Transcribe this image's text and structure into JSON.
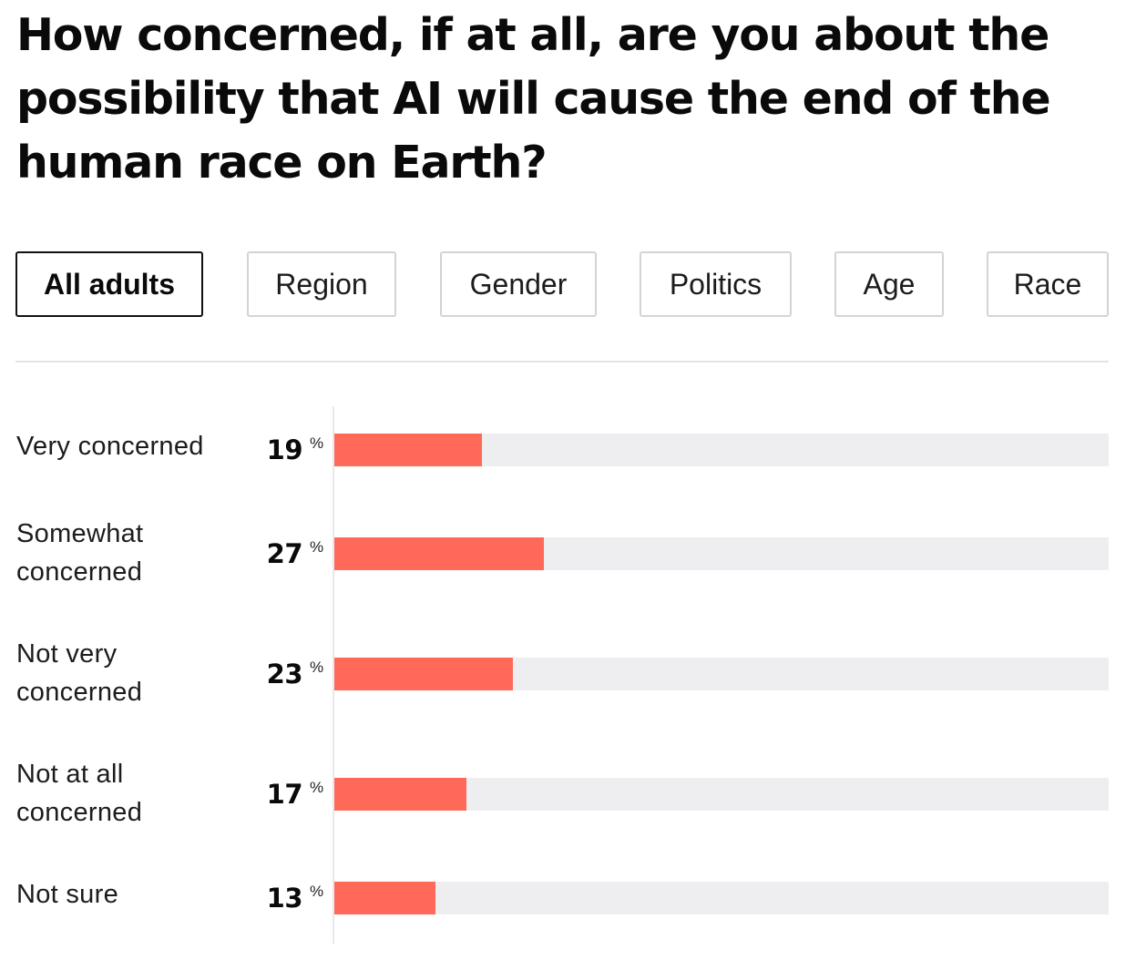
{
  "title": "How concerned, if at all, are you about the possibility that AI will cause the end of the human race on Earth?",
  "tabs": [
    {
      "label": "All adults",
      "active": true
    },
    {
      "label": "Region",
      "active": false
    },
    {
      "label": "Gender",
      "active": false
    },
    {
      "label": "Politics",
      "active": false
    },
    {
      "label": "Age",
      "active": false
    },
    {
      "label": "Race",
      "active": false
    }
  ],
  "colors": {
    "bar": "#fe695a",
    "track": "#eeeef1",
    "active_tab_border": "#111111",
    "tab_border": "#d3d3d8"
  },
  "chart_data": {
    "type": "bar",
    "orientation": "horizontal",
    "categories": [
      "Very concerned",
      "Somewhat concerned",
      "Not very concerned",
      "Not at all concerned",
      "Not sure"
    ],
    "values": [
      19,
      27,
      23,
      17,
      13
    ],
    "value_suffix": "%",
    "xlim": [
      0,
      100
    ],
    "grid": false
  }
}
